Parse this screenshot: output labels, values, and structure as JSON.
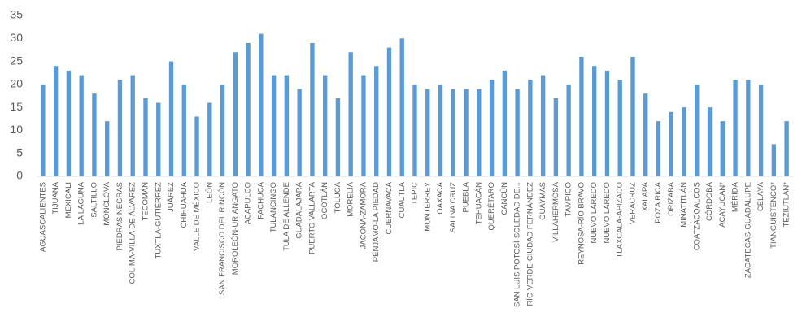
{
  "chart_data": {
    "type": "bar",
    "categories": [
      "AGUASCALIENTES",
      "TIJUANA",
      "MEXICALI",
      "LA LAGUNA",
      "SALTILLO",
      "MONCLOVA",
      "PIEDRAS NEGRAS",
      "COLIMA-VILLA DE ÁLVAREZ",
      "TECOMÁN",
      "TUXTLA-GUTIÉRREZ",
      "JUÁREZ",
      "CHIHUAHUA",
      "VALLE DE MÉXICO",
      "LEÓN",
      "SAN FRANCISCO DEL RINCÓN",
      "MOROLEÓN-URIANGATO",
      "ACAPULCO",
      "PACHUCA",
      "TULANCINGO",
      "TULA DE ALLENDE",
      "GUADALAJARA",
      "PUERTO VALLARTA",
      "OCOTLÁN",
      "TOLUCA",
      "MORELIA",
      "JACONA-ZAMORA",
      "PÉNJAMO-LA PIEDAD",
      "CUERNAVACA",
      "CUAUTLA",
      "TEPIC",
      "MONTERREY",
      "OAXACA",
      "SALINA CRUZ",
      "PUEBLA",
      "TEHUACÁN",
      "QUERÉTARO",
      "CANCÚN",
      "SAN LUIS POTOSÍ-SOLEDAD DE...",
      "RÍO VERDE-CIUDAD FERNÁNDEZ",
      "GUAYMAS",
      "VILLAHERMOSA",
      "TAMPICO",
      "REYNOSA-RÍO BRAVO",
      "NUEVO LAREDO",
      "NUEVO LAREDO",
      "TLAXCALA-APIZACO",
      "VERACRUZ",
      "XALAPA",
      "POZA RICA",
      "ORIZABA",
      "MINATITLÁN",
      "COATZACOALCOS",
      "CÓRDOBA",
      "ACAYUCAN*",
      "MÉRIDA",
      "ZACATECAS-GUADALUPE",
      "CELAYA",
      "TIANGUISTENCO*",
      "TEZIUTLÁN*"
    ],
    "values": [
      20,
      24,
      23,
      22,
      18,
      12,
      21,
      22,
      17,
      16,
      25,
      20,
      13,
      16,
      20,
      27,
      29,
      31,
      22,
      22,
      19,
      29,
      22,
      17,
      27,
      22,
      24,
      28,
      30,
      20,
      19,
      20,
      19,
      19,
      19,
      21,
      23,
      19,
      21,
      22,
      17,
      20,
      26,
      24,
      23,
      21,
      26,
      18,
      12,
      14,
      15,
      20,
      15,
      12,
      21,
      21,
      20,
      7,
      12
    ],
    "color": "#5b9bd5",
    "ylim": [
      0,
      35
    ],
    "yticks": [
      0,
      5,
      10,
      15,
      20,
      25,
      30,
      35
    ],
    "grid": false
  }
}
